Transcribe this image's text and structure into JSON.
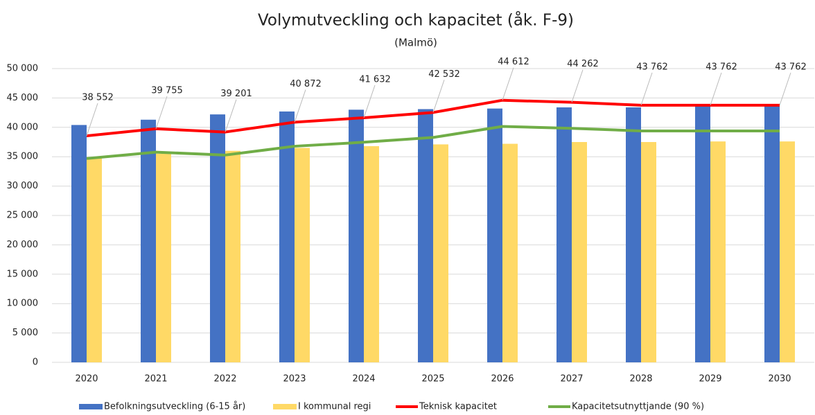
{
  "chart_data": {
    "type": "bar-line",
    "title": "Volymutveckling och kapacitet (åk. F-9)",
    "subtitle": "(Malmö)",
    "categories": [
      "2020",
      "2021",
      "2022",
      "2023",
      "2024",
      "2025",
      "2026",
      "2027",
      "2028",
      "2029",
      "2030"
    ],
    "series": [
      {
        "name": "Befolkningsutveckling (6-15 år)",
        "color": "#4472c4",
        "kind": "bar",
        "values": [
          40400,
          41300,
          42200,
          42700,
          43000,
          43100,
          43200,
          43400,
          43400,
          43600,
          43700
        ]
      },
      {
        "name": "I kommunal regi",
        "color": "#ffd966",
        "kind": "bar",
        "values": [
          34800,
          35500,
          36000,
          36500,
          36800,
          37100,
          37200,
          37500,
          37500,
          37600,
          37600
        ]
      },
      {
        "name": "Teknisk kapacitet",
        "color": "#ff0000",
        "kind": "line",
        "values": [
          38552,
          39755,
          39201,
          40872,
          41632,
          42532,
          44612,
          44262,
          43762,
          43762,
          43762
        ],
        "value_labels": [
          "38 552",
          "39 755",
          "39 201",
          "40 872",
          "41 632",
          "42 532",
          "44 612",
          "44 262",
          "43 762",
          "43 762",
          "43 762"
        ]
      },
      {
        "name": "Kapacitetsutnyttjande (90 %)",
        "color": "#70ad47",
        "kind": "line",
        "values": [
          34697,
          35780,
          35281,
          36785,
          37469,
          38279,
          40151,
          39836,
          39386,
          39386,
          39386
        ]
      }
    ],
    "ylim": [
      0,
      50000
    ],
    "yticks": [
      0,
      {
        "value": 5000,
        "label": "5 000"
      },
      {
        "value": 10000,
        "label": "10 000"
      },
      {
        "value": 15000,
        "label": "15 000"
      },
      {
        "value": 20000,
        "label": "20 000"
      },
      {
        "value": 25000,
        "label": "25 000"
      },
      {
        "value": 30000,
        "label": "30 000"
      },
      {
        "value": 35000,
        "label": "35 000"
      },
      {
        "value": 40000,
        "label": "40 000"
      },
      {
        "value": 45000,
        "label": "45 000"
      },
      {
        "value": 50000,
        "label": "50 000"
      }
    ],
    "grid": true,
    "legend": "bottom"
  }
}
